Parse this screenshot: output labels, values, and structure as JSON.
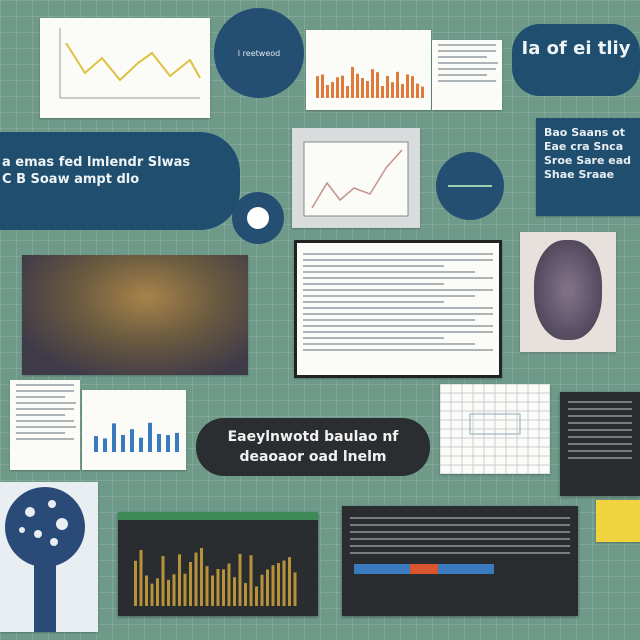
{
  "headings": {
    "top_right_pill": "Ia of ei tliy",
    "left_pill": "a emas fed lmlendr Slwas C B Soaw ampt dlo",
    "center_dark_pill": "Eaeylnwotd baulao nf deaoaor oad lnelm",
    "right_box": "Bao Saans ot Eae cra Snca Sroe Sare ead Shae Sraae"
  },
  "center_circle_label": "I reetweod",
  "teal_circle_label": "",
  "colors": {
    "background": "#6f9a8a",
    "navy": "#1f4e6e",
    "chart_yellow": "#e0c040",
    "chart_orange": "#e07a3a",
    "chart_blue": "#3a7abf",
    "dark_panel": "#2a2d2f"
  }
}
